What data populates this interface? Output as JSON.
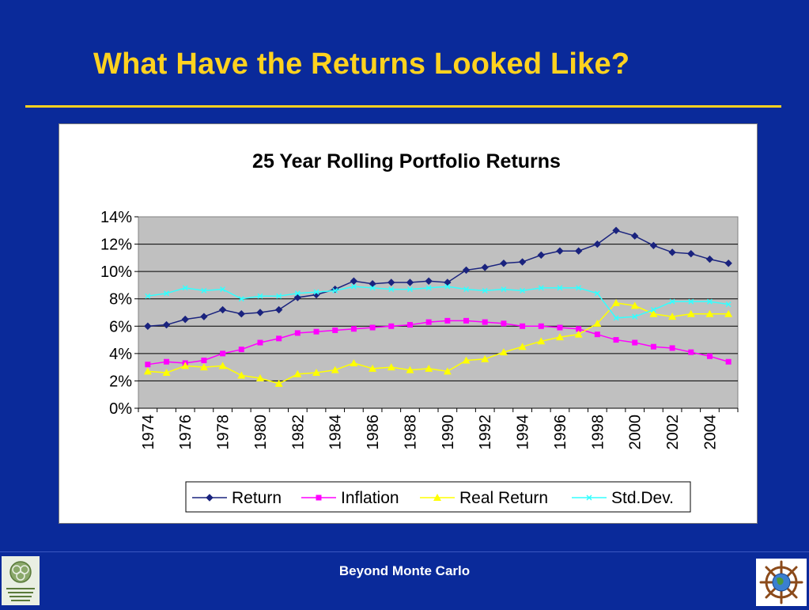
{
  "slide": {
    "title": "What Have the Returns Looked Like?",
    "footer": "Beyond Monte Carlo"
  },
  "colors": {
    "background": "#0a2a9a",
    "title": "#ffd21f",
    "plot_area": "#c0c0c0",
    "return": "#1a237e",
    "inflation": "#ff00ff",
    "real_return": "#ffff00",
    "std_dev": "#33ffff"
  },
  "chart_data": {
    "type": "line",
    "title": "25 Year Rolling Portfolio Returns",
    "xlabel": "",
    "ylabel": "",
    "ylim": [
      0,
      14
    ],
    "y_ticks": [
      "0%",
      "2%",
      "4%",
      "6%",
      "8%",
      "10%",
      "12%",
      "14%"
    ],
    "x": [
      1974,
      1975,
      1976,
      1977,
      1978,
      1979,
      1980,
      1981,
      1982,
      1983,
      1984,
      1985,
      1986,
      1987,
      1988,
      1989,
      1990,
      1991,
      1992,
      1993,
      1994,
      1995,
      1996,
      1997,
      1998,
      1999,
      2000,
      2001,
      2002,
      2003,
      2004,
      2005
    ],
    "x_tick_labels": [
      "1974",
      "1976",
      "1978",
      "1980",
      "1982",
      "1984",
      "1986",
      "1988",
      "1990",
      "1992",
      "1994",
      "1996",
      "1998",
      "2000",
      "2002",
      "2004"
    ],
    "grid": true,
    "legend_position": "bottom",
    "series": [
      {
        "name": "Return",
        "color_key": "return",
        "marker": "diamond",
        "values": [
          6.0,
          6.1,
          6.5,
          6.7,
          7.2,
          6.9,
          7.0,
          7.2,
          8.1,
          8.3,
          8.7,
          9.3,
          9.1,
          9.2,
          9.2,
          9.3,
          9.2,
          10.1,
          10.3,
          10.6,
          10.7,
          11.2,
          11.5,
          11.5,
          12.0,
          13.0,
          12.6,
          11.9,
          11.4,
          11.3,
          10.9,
          10.6
        ]
      },
      {
        "name": "Inflation",
        "color_key": "inflation",
        "marker": "square",
        "values": [
          3.2,
          3.4,
          3.3,
          3.5,
          4.0,
          4.3,
          4.8,
          5.1,
          5.5,
          5.6,
          5.7,
          5.8,
          5.9,
          6.0,
          6.1,
          6.3,
          6.4,
          6.4,
          6.3,
          6.2,
          6.0,
          6.0,
          5.9,
          5.8,
          5.4,
          5.0,
          4.8,
          4.5,
          4.4,
          4.1,
          3.8,
          3.4
        ]
      },
      {
        "name": "Real Return",
        "color_key": "real_return",
        "marker": "triangle",
        "values": [
          2.7,
          2.6,
          3.1,
          3.0,
          3.1,
          2.4,
          2.2,
          1.8,
          2.5,
          2.6,
          2.8,
          3.3,
          2.9,
          3.0,
          2.8,
          2.9,
          2.7,
          3.5,
          3.6,
          4.1,
          4.5,
          4.9,
          5.2,
          5.4,
          6.2,
          7.7,
          7.5,
          6.9,
          6.7,
          6.9,
          6.9,
          6.9
        ]
      },
      {
        "name": "Std.Dev.",
        "color_key": "std_dev",
        "marker": "x",
        "values": [
          8.2,
          8.4,
          8.8,
          8.6,
          8.7,
          8.0,
          8.2,
          8.2,
          8.4,
          8.5,
          8.6,
          8.9,
          8.8,
          8.7,
          8.7,
          8.8,
          8.9,
          8.7,
          8.6,
          8.7,
          8.6,
          8.8,
          8.8,
          8.8,
          8.4,
          6.6,
          6.7,
          7.2,
          7.8,
          7.8,
          7.8,
          7.6
        ]
      }
    ]
  }
}
